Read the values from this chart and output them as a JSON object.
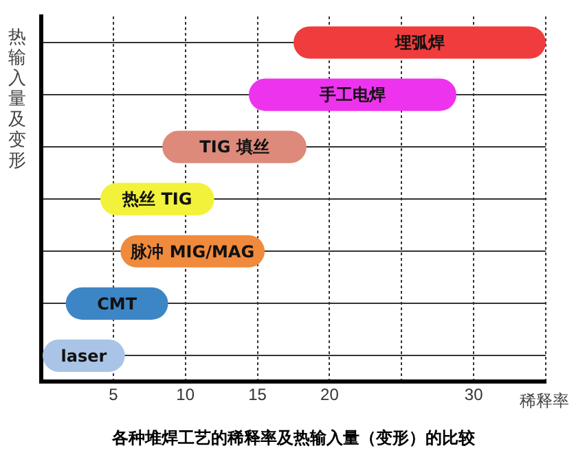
{
  "chart_data": {
    "type": "bar",
    "orientation": "horizontal",
    "title": "各种堆焊工艺的稀释率及热输入量（变形）的比较",
    "xlabel": "稀释率",
    "ylabel": "热输入量及变形",
    "categories": [
      "埋弧焊",
      "手工电焊",
      "TIG 填丝",
      "热丝 TIG",
      "脉冲 MIG/MAG",
      "CMT",
      "laser"
    ],
    "base": [
      17.5,
      14.4,
      8.4,
      4.1,
      5.5,
      1.7,
      0.1
    ],
    "values": [
      17.5,
      14.4,
      10,
      7.9,
      10,
      7.1,
      5.7
    ],
    "colors": [
      "#f03c3c",
      "#ee33ee",
      "#dd8a7a",
      "#f2f23a",
      "#f08a3c",
      "#3d86c6",
      "#a9c4e6"
    ],
    "xlim": [
      0,
      35
    ],
    "xticks": [
      5,
      10,
      15,
      20,
      {
        "value": 25,
        "label": null
      },
      30,
      {
        "value": 35,
        "label": null
      }
    ],
    "grid": true,
    "tick_labels": "x"
  }
}
